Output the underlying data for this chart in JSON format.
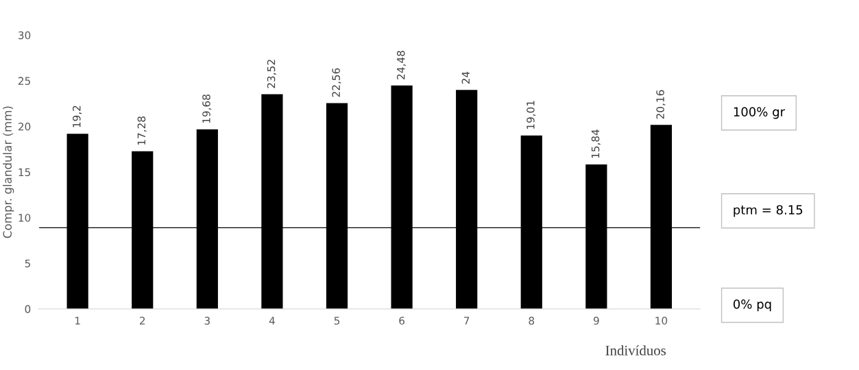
{
  "chart_data": {
    "type": "bar",
    "xlabel": "Indivíduos",
    "ylabel": "Compr. glandular (mm)",
    "categories": [
      "1",
      "2",
      "3",
      "4",
      "5",
      "6",
      "7",
      "8",
      "9",
      "10"
    ],
    "values": [
      19.2,
      17.28,
      19.68,
      23.52,
      22.56,
      24.48,
      24,
      19.01,
      15.84,
      20.16
    ],
    "value_labels": [
      "19,2",
      "17,28",
      "19,68",
      "23,52",
      "22,56",
      "24,48",
      "24",
      "19,01",
      "15,84",
      "20,16"
    ],
    "color": "#000000",
    "ylim": [
      0,
      30
    ],
    "yticks": [
      0,
      5,
      10,
      15,
      20,
      25,
      30
    ],
    "grid": false,
    "legend": false,
    "ref_lines": [
      {
        "axis": "y",
        "value": 8.9,
        "color": "#000000",
        "line_style": "solid"
      }
    ],
    "annotations": [
      "100% gr",
      "ptm = 8.15",
      "0% pq"
    ]
  }
}
